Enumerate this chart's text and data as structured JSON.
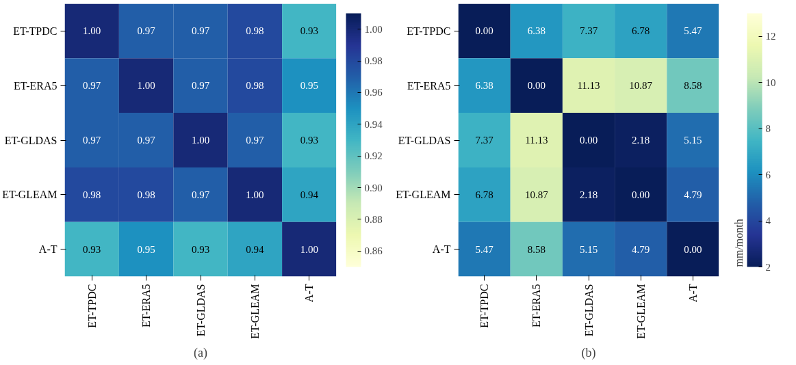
{
  "chart_data": [
    {
      "type": "heatmap",
      "categories": [
        "ET-TPDC",
        "ET-ERA5",
        "ET-GLDAS",
        "ET-GLEAM",
        "A-T"
      ],
      "y_categories": [
        "ET-TPDC",
        "ET-ERA5",
        "ET-GLDAS",
        "ET-GLEAM",
        "A-T"
      ],
      "cells": [
        [
          1.0,
          0.97,
          0.97,
          0.98,
          0.93
        ],
        [
          0.97,
          1.0,
          0.97,
          0.98,
          0.95
        ],
        [
          0.97,
          0.97,
          1.0,
          0.97,
          0.93
        ],
        [
          0.98,
          0.98,
          0.97,
          1.0,
          0.94
        ],
        [
          0.93,
          0.95,
          0.93,
          0.94,
          1.0
        ]
      ],
      "cell_labels": [
        [
          "1.00",
          "0.97",
          "0.97",
          "0.98",
          "0.93"
        ],
        [
          "0.97",
          "1.00",
          "0.97",
          "0.98",
          "0.95"
        ],
        [
          "0.97",
          "0.97",
          "1.00",
          "0.97",
          "0.93"
        ],
        [
          "0.98",
          "0.98",
          "0.97",
          "1.00",
          "0.94"
        ],
        [
          "0.93",
          "0.95",
          "0.93",
          "0.94",
          "1.00"
        ]
      ],
      "clim": [
        0.85,
        1.01
      ],
      "cticks": [
        {
          "value": 0.86,
          "label": "0.86"
        },
        {
          "value": 0.88,
          "label": "0.88"
        },
        {
          "value": 0.9,
          "label": "0.90"
        },
        {
          "value": 0.92,
          "label": "0.92"
        },
        {
          "value": 0.94,
          "label": "0.94"
        },
        {
          "value": 0.96,
          "label": "0.96"
        },
        {
          "value": 0.98,
          "label": "0.98"
        },
        {
          "value": 1.0,
          "label": "1.00"
        }
      ],
      "annotations": [
        "(a)"
      ]
    },
    {
      "type": "heatmap",
      "categories": [
        "ET-TPDC",
        "ET-ERA5",
        "ET-GLDAS",
        "ET-GLEAM",
        "A-T"
      ],
      "y_categories": [
        "ET-TPDC",
        "ET-ERA5",
        "ET-GLDAS",
        "ET-GLEAM",
        "A-T"
      ],
      "cells": [
        [
          0.0,
          6.38,
          7.37,
          6.78,
          5.47
        ],
        [
          6.38,
          0.0,
          11.13,
          10.87,
          8.58
        ],
        [
          7.37,
          11.13,
          0.0,
          2.18,
          5.15
        ],
        [
          6.78,
          10.87,
          2.18,
          0.0,
          4.79
        ],
        [
          5.47,
          8.58,
          5.15,
          4.79,
          0.0
        ]
      ],
      "cell_labels": [
        [
          "0.00",
          "6.38",
          "7.37",
          "6.78",
          "5.47"
        ],
        [
          "6.38",
          "0.00",
          "11.13",
          "10.87",
          "8.58"
        ],
        [
          "7.37",
          "11.13",
          "0.00",
          "2.18",
          "5.15"
        ],
        [
          "6.78",
          "10.87",
          "2.18",
          "0.00",
          "4.79"
        ],
        [
          "5.47",
          "8.58",
          "5.15",
          "4.79",
          "0.00"
        ]
      ],
      "clim": [
        2,
        13
      ],
      "cticks": [
        2,
        4,
        6,
        8,
        10,
        12
      ],
      "clabel": "mm/month",
      "annotations": [
        "(b)"
      ]
    }
  ]
}
